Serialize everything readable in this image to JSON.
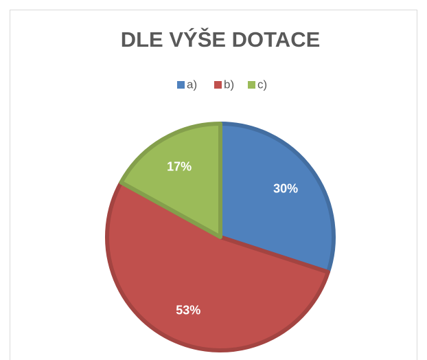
{
  "chart_data": {
    "type": "pie",
    "title": "DLE VÝŠE DOTACE",
    "categories": [
      "a)",
      "b)",
      "c)"
    ],
    "values": [
      30,
      53,
      17
    ],
    "value_labels": [
      "30%",
      "53%",
      "17%"
    ],
    "colors": [
      "#4f81bd",
      "#c0504d",
      "#9bbb59"
    ],
    "legend": "top"
  }
}
